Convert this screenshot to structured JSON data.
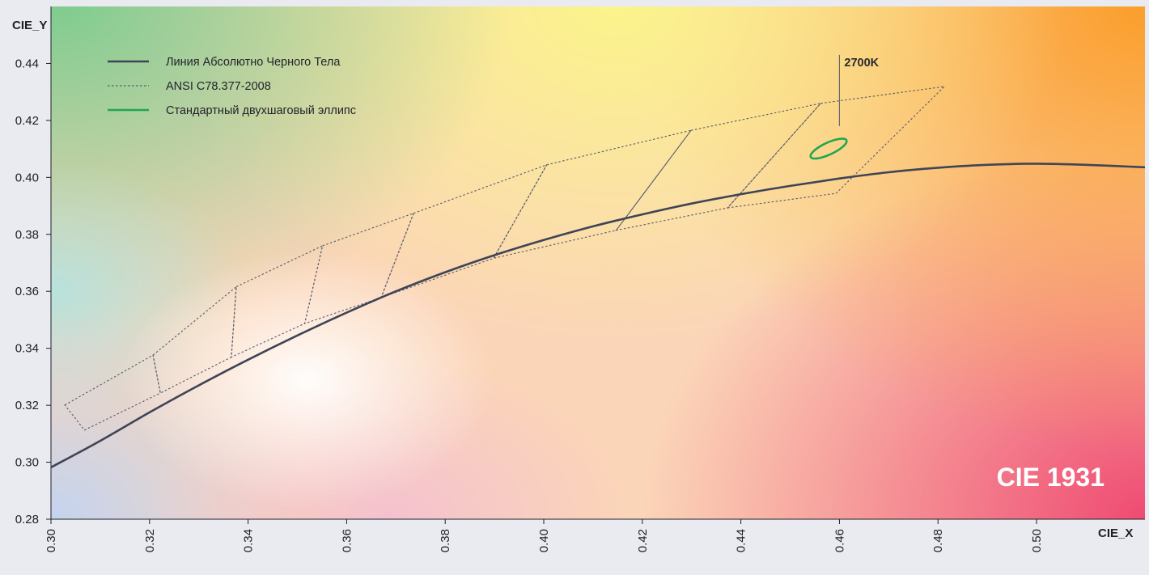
{
  "chart_data": {
    "type": "line",
    "x_axis": {
      "label": "CIE_X",
      "range": [
        0.3,
        0.522
      ],
      "ticks": [
        "0.30",
        "0.32",
        "0.34",
        "0.36",
        "0.38",
        "0.40",
        "0.42",
        "0.44",
        "0.46",
        "0.48",
        "0.50"
      ]
    },
    "y_axis": {
      "label": "CIE_Y",
      "range": [
        0.28,
        0.46
      ],
      "ticks": [
        "0.28",
        "0.30",
        "0.32",
        "0.34",
        "0.36",
        "0.38",
        "0.40",
        "0.42",
        "0.44"
      ]
    },
    "grid": false,
    "legend": {
      "placement": "top-left",
      "entries": [
        {
          "label": "Линия Абсолютно Черного Тела",
          "style": "solid",
          "color": "#3f4456"
        },
        {
          "label": "ANSI C78.377-2008",
          "style": "dotted",
          "color": "#555a6a"
        },
        {
          "label": "Стандартный двухшаговый эллипс",
          "style": "solid",
          "color": "#1fa84f"
        }
      ]
    },
    "series": [
      {
        "name": "Линия Абсолютно Черного Тела",
        "kind": "curve",
        "points": [
          [
            0.3,
            0.2982
          ],
          [
            0.31,
            0.3075
          ],
          [
            0.32,
            0.3175
          ],
          [
            0.33,
            0.327
          ],
          [
            0.34,
            0.336
          ],
          [
            0.35,
            0.3445
          ],
          [
            0.36,
            0.3525
          ],
          [
            0.37,
            0.36
          ],
          [
            0.38,
            0.3667
          ],
          [
            0.39,
            0.3727
          ],
          [
            0.4,
            0.378
          ],
          [
            0.41,
            0.3828
          ],
          [
            0.42,
            0.387
          ],
          [
            0.43,
            0.3908
          ],
          [
            0.44,
            0.3941
          ],
          [
            0.45,
            0.397
          ],
          [
            0.46,
            0.3996
          ],
          [
            0.47,
            0.4018
          ],
          [
            0.48,
            0.4034
          ],
          [
            0.49,
            0.4044
          ],
          [
            0.5,
            0.4048
          ],
          [
            0.51,
            0.4044
          ],
          [
            0.5225,
            0.4035
          ]
        ]
      },
      {
        "name": "ANSI C78.377-2008",
        "kind": "quadrangles",
        "quads": [
          [
            [
              0.3028,
              0.3201
            ],
            [
              0.3207,
              0.3376
            ],
            [
              0.3222,
              0.3243
            ],
            [
              0.3068,
              0.3113
            ]
          ],
          [
            [
              0.3207,
              0.3376
            ],
            [
              0.3376,
              0.3616
            ],
            [
              0.3366,
              0.3369
            ],
            [
              0.3222,
              0.3243
            ]
          ],
          [
            [
              0.3376,
              0.3616
            ],
            [
              0.3551,
              0.376
            ],
            [
              0.3515,
              0.3487
            ],
            [
              0.3366,
              0.3369
            ]
          ],
          [
            [
              0.3551,
              0.376
            ],
            [
              0.3736,
              0.3874
            ],
            [
              0.367,
              0.3578
            ],
            [
              0.3515,
              0.3487
            ]
          ],
          [
            [
              0.3736,
              0.3874
            ],
            [
              0.4006,
              0.4044
            ],
            [
              0.3898,
              0.3716
            ],
            [
              0.367,
              0.3578
            ]
          ],
          [
            [
              0.4006,
              0.4044
            ],
            [
              0.4299,
              0.4165
            ],
            [
              0.4147,
              0.3814
            ],
            [
              0.3898,
              0.3716
            ]
          ],
          [
            [
              0.4299,
              0.4165
            ],
            [
              0.4562,
              0.426
            ],
            [
              0.4373,
              0.3893
            ],
            [
              0.4147,
              0.3814
            ]
          ],
          [
            [
              0.4562,
              0.426
            ],
            [
              0.4813,
              0.4319
            ],
            [
              0.4593,
              0.3944
            ],
            [
              0.4373,
              0.3893
            ]
          ]
        ]
      },
      {
        "name": "Стандартный двухшаговый эллипс",
        "kind": "ellipse",
        "center": [
          0.4578,
          0.4101
        ],
        "semi_axes": [
          0.004,
          0.0021
        ],
        "rotation_deg": -25
      }
    ],
    "annotations": [
      {
        "text": "2700K",
        "x": 0.46,
        "y_range": [
          0.418,
          0.443
        ]
      }
    ]
  },
  "watermark": "CIE 1931"
}
